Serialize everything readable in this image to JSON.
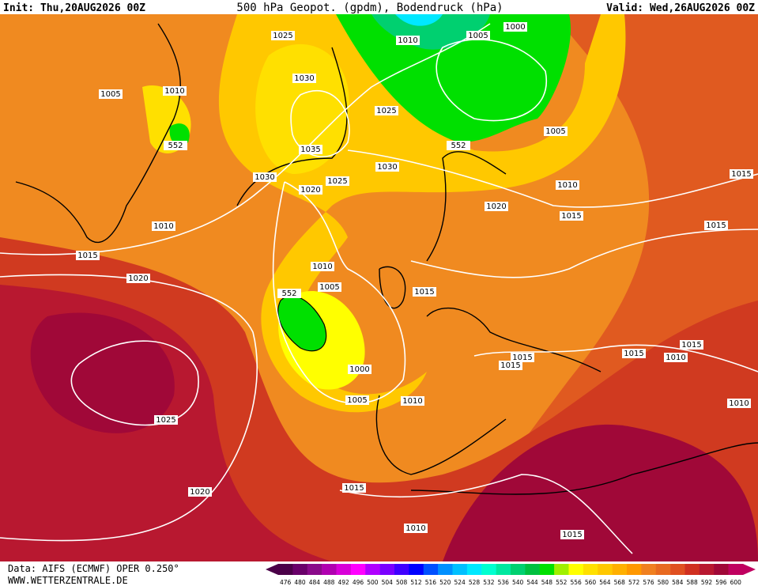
{
  "header": {
    "init": "Init: Thu,20AUG2026 00Z",
    "title": "500 hPa Geopot. (gpdm), Bodendruck (hPa)",
    "valid": "Valid: Wed,26AUG2026 00Z"
  },
  "contour_labels": [
    "1025",
    "1010",
    "1005",
    "1000",
    "1005",
    "1010",
    "1030",
    "1025",
    "552",
    "1035",
    "1030",
    "552",
    "1005",
    "1030",
    "1025",
    "1020",
    "1015",
    "1010",
    "1020",
    "1015",
    "1010",
    "1015",
    "1015",
    "1010",
    "1020",
    "1005",
    "552",
    "1015",
    "1015",
    "1015",
    "1015",
    "1010",
    "1015",
    "1000",
    "1005",
    "1010",
    "1010",
    "1025",
    "1020",
    "1015",
    "1010",
    "1015"
  ],
  "colorbar": {
    "labels": [
      476,
      480,
      484,
      488,
      492,
      496,
      500,
      504,
      508,
      512,
      516,
      520,
      524,
      528,
      532,
      536,
      540,
      544,
      548,
      552,
      556,
      560,
      564,
      568,
      572,
      576,
      580,
      584,
      588,
      592,
      596,
      600
    ],
    "colors": [
      "#4b0048",
      "#6a006a",
      "#8a0a8a",
      "#b000b0",
      "#d800d8",
      "#ff00ff",
      "#b000ff",
      "#7a00ff",
      "#4000ff",
      "#0000ff",
      "#0050ff",
      "#0090ff",
      "#00c0ff",
      "#00e8ff",
      "#00ffd0",
      "#00e8a0",
      "#00d070",
      "#00c040",
      "#00e000",
      "#a0f000",
      "#ffff00",
      "#ffe000",
      "#ffc800",
      "#ffb000",
      "#ff9800",
      "#f08020",
      "#e86a20",
      "#e05020",
      "#d03020",
      "#b81830",
      "#a00838",
      "#c00060"
    ]
  },
  "footer": {
    "data": "Data: AIFS (ECMWF) OPER 0.250°",
    "site": "WWW.WETTERZENTRALE.DE"
  }
}
